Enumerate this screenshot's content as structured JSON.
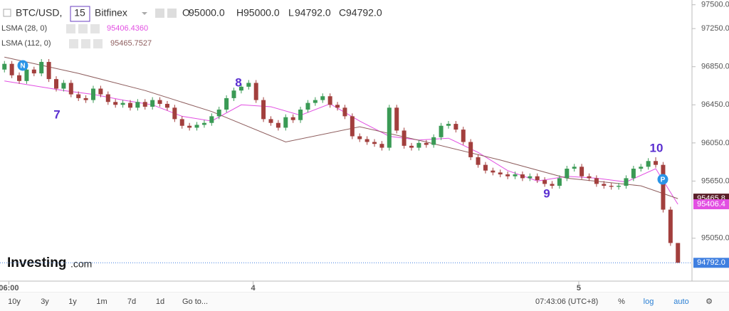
{
  "header": {
    "symbol": "BTC/USD,",
    "interval": "15",
    "exchange": "Bitfinex",
    "ohlc": [
      {
        "key": "O",
        "value": "95000.0"
      },
      {
        "key": "H",
        "value": "95000.0"
      },
      {
        "key": "L",
        "value": "94792.0"
      },
      {
        "key": "C",
        "value": "94792.0"
      }
    ]
  },
  "logo": {
    "brand": "Investing",
    "suffix": ".com"
  },
  "chart_data": {
    "type": "candlestick",
    "ylim": [
      94600,
      97550
    ],
    "yticks": [
      {
        "value": 97500,
        "label": "97500.0"
      },
      {
        "value": 97250,
        "label": "97250.0"
      },
      {
        "value": 96850,
        "label": "96850.0"
      },
      {
        "value": 96450,
        "label": "96450.0"
      },
      {
        "value": 96050,
        "label": "96050.0"
      },
      {
        "value": 95650,
        "label": "95650.0"
      },
      {
        "value": 95050,
        "label": "95050.0"
      }
    ],
    "xlim": [
      -0.6,
      92.9
    ],
    "xticks": [
      {
        "value": 0.6,
        "label": "06:00"
      },
      {
        "value": 33.6,
        "label": "4"
      },
      {
        "value": 77.6,
        "label": "5"
      }
    ],
    "candles": {
      "up_color": "#3a9a55",
      "down_color": "#a23f3d",
      "open": [
        96820,
        96880,
        96760,
        96700,
        96820,
        96780,
        96900,
        96720,
        96620,
        96680,
        96560,
        96520,
        96500,
        96620,
        96560,
        96480,
        96450,
        96470,
        96420,
        96480,
        96430,
        96500,
        96460,
        96420,
        96300,
        96230,
        96210,
        96240,
        96260,
        96330,
        96400,
        96520,
        96600,
        96640,
        96680,
        96500,
        96300,
        96260,
        96210,
        96320,
        96290,
        96400,
        96470,
        96500,
        96540,
        96450,
        96420,
        96330,
        96120,
        96090,
        96060,
        96040,
        96000,
        96420,
        96180,
        96020,
        96000,
        96050,
        96030,
        96110,
        96230,
        96250,
        96190,
        96060,
        95900,
        95820,
        95760,
        95740,
        95720,
        95700,
        95720,
        95680,
        95700,
        95660,
        95620,
        95600,
        95680,
        95780,
        95800,
        95700,
        95680,
        95620,
        95600,
        95590,
        95600,
        95680,
        95780,
        95800,
        95860,
        95820,
        95350,
        95000
      ],
      "high": [
        96910,
        96910,
        96790,
        96850,
        96850,
        96930,
        96930,
        96750,
        96710,
        96710,
        96590,
        96550,
        96650,
        96650,
        96590,
        96510,
        96500,
        96500,
        96510,
        96510,
        96530,
        96530,
        96490,
        96450,
        96330,
        96260,
        96270,
        96290,
        96360,
        96430,
        96550,
        96630,
        96670,
        96710,
        96710,
        96530,
        96330,
        96290,
        96350,
        96350,
        96430,
        96500,
        96530,
        96570,
        96570,
        96480,
        96450,
        96360,
        96150,
        96120,
        96090,
        96070,
        96450,
        96450,
        96210,
        96050,
        96080,
        96080,
        96140,
        96260,
        96280,
        96280,
        96220,
        96090,
        95930,
        95850,
        95790,
        95770,
        95750,
        95750,
        95750,
        95730,
        95730,
        95690,
        95650,
        95710,
        95810,
        95830,
        95830,
        95730,
        95710,
        95650,
        95630,
        95630,
        95710,
        95810,
        95830,
        95890,
        95900,
        95850,
        95380,
        95000
      ],
      "low": [
        96790,
        96730,
        96670,
        96670,
        96750,
        96750,
        96690,
        96590,
        96590,
        96530,
        96490,
        96470,
        96470,
        96530,
        96450,
        96420,
        96420,
        96390,
        96390,
        96400,
        96400,
        96430,
        96390,
        96270,
        96200,
        96180,
        96180,
        96210,
        96230,
        96300,
        96370,
        96490,
        96570,
        96610,
        96470,
        96270,
        96230,
        96180,
        96180,
        96260,
        96260,
        96370,
        96440,
        96470,
        96420,
        96390,
        96300,
        96090,
        96060,
        96030,
        96010,
        95970,
        95970,
        96150,
        95990,
        95970,
        95970,
        96000,
        96000,
        96080,
        96200,
        96160,
        96030,
        95870,
        95790,
        95730,
        95710,
        95690,
        95670,
        95670,
        95650,
        95650,
        95630,
        95590,
        95570,
        95570,
        95650,
        95750,
        95670,
        95650,
        95590,
        95570,
        95560,
        95560,
        95570,
        95650,
        95750,
        95770,
        95790,
        95320,
        94970,
        94792
      ],
      "close": [
        96880,
        96760,
        96700,
        96820,
        96780,
        96900,
        96720,
        96620,
        96680,
        96560,
        96520,
        96500,
        96620,
        96560,
        96480,
        96450,
        96470,
        96420,
        96480,
        96430,
        96500,
        96460,
        96420,
        96300,
        96230,
        96210,
        96240,
        96260,
        96330,
        96400,
        96520,
        96600,
        96640,
        96680,
        96500,
        96300,
        96260,
        96210,
        96320,
        96290,
        96400,
        96470,
        96500,
        96540,
        96450,
        96420,
        96330,
        96120,
        96090,
        96060,
        96040,
        96000,
        96420,
        96180,
        96020,
        96000,
        96050,
        96030,
        96110,
        96230,
        96250,
        96190,
        96060,
        95900,
        95820,
        95760,
        95740,
        95720,
        95700,
        95720,
        95680,
        95700,
        95660,
        95620,
        95600,
        95680,
        95780,
        95800,
        95700,
        95680,
        95620,
        95600,
        95590,
        95600,
        95680,
        95780,
        95800,
        95860,
        95820,
        95350,
        95000,
        94792
      ]
    },
    "lines": [
      {
        "name": "LSMA (28, 0)",
        "color": "#e24fe2",
        "badge_color": "#e24fe2",
        "value_label": "95406.4360",
        "badge_label": "95406.4",
        "x": [
          0,
          4,
          8,
          12,
          16,
          20,
          24,
          28,
          32,
          36,
          40,
          44,
          48,
          52,
          56,
          60,
          64,
          68,
          72,
          76,
          80,
          84,
          88,
          91
        ],
        "values": [
          96700,
          96650,
          96600,
          96560,
          96500,
          96450,
          96330,
          96280,
          96450,
          96430,
          96340,
          96460,
          96280,
          96120,
          96080,
          96100,
          95950,
          95760,
          95650,
          95700,
          95680,
          95640,
          95780,
          95406.436
        ]
      },
      {
        "name": "LSMA (112, 0)",
        "color": "#8e5e5e",
        "badge_color": "#5a1f28",
        "value_label": "95465.7527",
        "badge_label": "95465.8",
        "x": [
          0,
          10,
          19,
          28,
          38,
          48,
          57,
          67,
          76,
          86,
          91
        ],
        "values": [
          96950,
          96780,
          96600,
          96380,
          96060,
          96220,
          96060,
          95870,
          95680,
          95600,
          95465.7527
        ]
      }
    ],
    "last_price": 94792,
    "last_price_label": "94792.0",
    "last_price_color": "#3f7fe0",
    "annotations": [
      "7",
      "8",
      "9",
      "10"
    ],
    "markers": [
      "N",
      "P"
    ]
  },
  "toolbar": {
    "ranges": [
      "10y",
      "3y",
      "1y",
      "1m",
      "7d",
      "1d"
    ],
    "goto": "Go to...",
    "time": "07:43:06 (UTC+8)",
    "options": [
      "%",
      "log",
      "auto"
    ]
  }
}
